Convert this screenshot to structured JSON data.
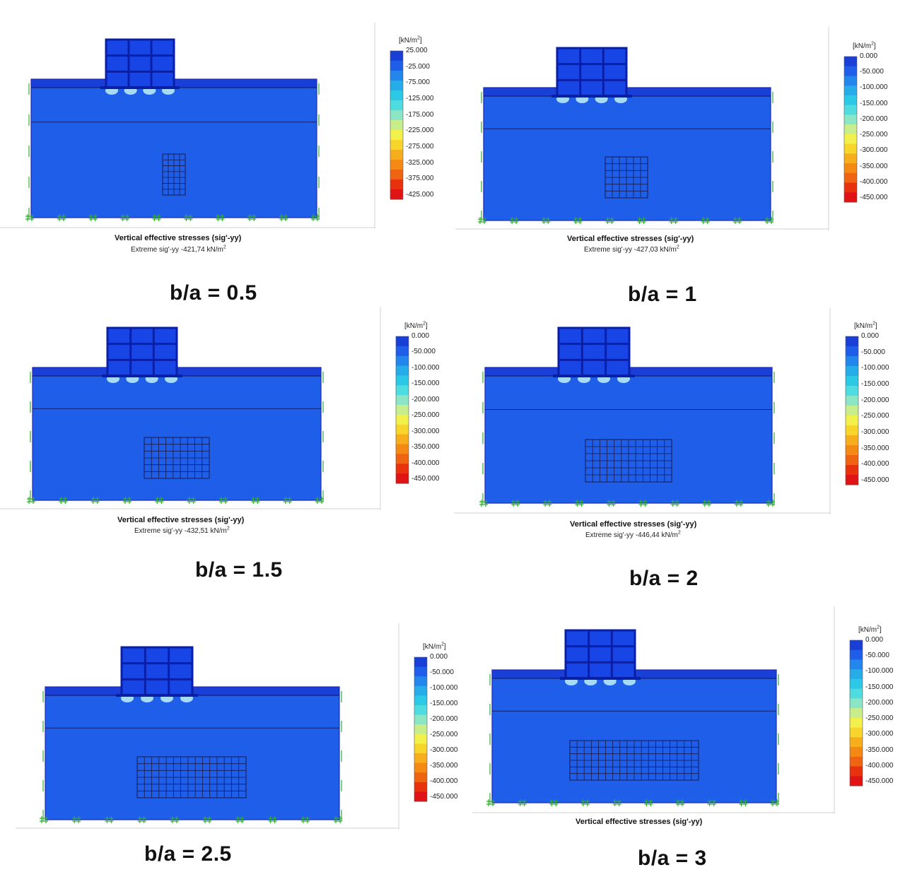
{
  "legend_unit": "[kN/m",
  "legend_unit_sup": "2",
  "legend_unit_close": "]",
  "caption_title": "Vertical effective stresses (sig'-yy)",
  "colors": {
    "scale": [
      "#1a3fd6",
      "#1e5ee8",
      "#2386ec",
      "#27acea",
      "#2cc9e6",
      "#4fdce0",
      "#8ae6c4",
      "#c8ee8c",
      "#f2f04a",
      "#f7d52a",
      "#f7ae1c",
      "#f48a14",
      "#ef6410",
      "#e8320e",
      "#e01414"
    ],
    "structure": "#1845e6",
    "structure_line": "#0a1fa8",
    "support": "#2fae2f"
  },
  "panels": [
    {
      "ratio_label": "b/a = 0.5",
      "extreme_label": "Extreme sig'-yy -421,74 kN/m",
      "extreme_sup": "2",
      "legend_ticks": [
        "25.000",
        "-25.000",
        "-75.000",
        "-125.000",
        "-175.000",
        "-225.000",
        "-275.000",
        "-325.000",
        "-375.000",
        "-425.000"
      ]
    },
    {
      "ratio_label": "b/a = 1",
      "extreme_label": "Extreme sig'-yy -427,03 kN/m",
      "extreme_sup": "2",
      "legend_ticks": [
        "0.000",
        "-50.000",
        "-100.000",
        "-150.000",
        "-200.000",
        "-250.000",
        "-300.000",
        "-350.000",
        "-400.000",
        "-450.000"
      ]
    },
    {
      "ratio_label": "b/a = 1.5",
      "extreme_label": "Extreme sig'-yy -432,51 kN/m",
      "extreme_sup": "2",
      "legend_ticks": [
        "0.000",
        "-50.000",
        "-100.000",
        "-150.000",
        "-200.000",
        "-250.000",
        "-300.000",
        "-350.000",
        "-400.000",
        "-450.000"
      ]
    },
    {
      "ratio_label": "b/a = 2",
      "extreme_label": "Extreme sig'-yy -446,44 kN/m",
      "extreme_sup": "2",
      "legend_ticks": [
        "0.000",
        "-50.000",
        "-100.000",
        "-150.000",
        "-200.000",
        "-250.000",
        "-300.000",
        "-350.000",
        "-400.000",
        "-450.000"
      ]
    },
    {
      "ratio_label": "b/a = 2.5",
      "extreme_label": "",
      "extreme_sup": "",
      "legend_ticks": [
        "0.000",
        "-50.000",
        "-100.000",
        "-150.000",
        "-200.000",
        "-250.000",
        "-300.000",
        "-350.000",
        "-400.000",
        "-450.000"
      ]
    },
    {
      "ratio_label": "b/a = 3",
      "extreme_label": "",
      "extreme_sup": "",
      "legend_ticks": [
        "0.000",
        "-50.000",
        "-100.000",
        "-150.000",
        "-200.000",
        "-250.000",
        "-300.000",
        "-350.000",
        "-400.000",
        "-450.000"
      ]
    }
  ]
}
